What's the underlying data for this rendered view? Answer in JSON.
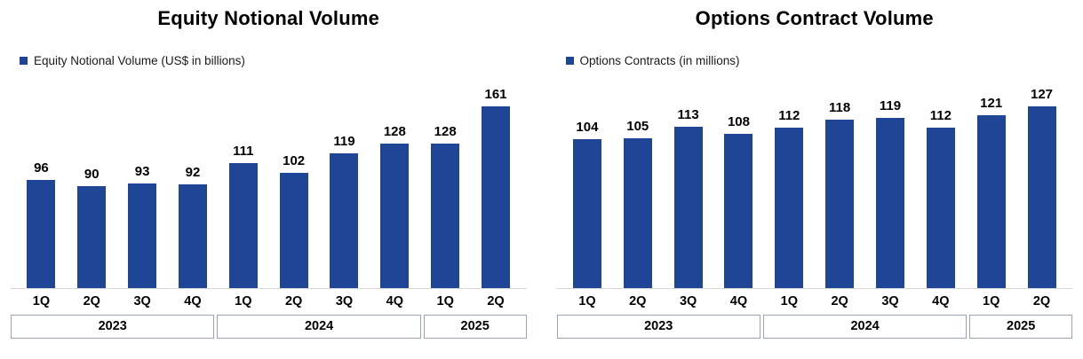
{
  "colors": {
    "bar_blue": "#1F4696",
    "axis_line": "#d6d6d6",
    "year_box_border": "#9aa3b0"
  },
  "chart_data": [
    {
      "type": "bar",
      "title": "Equity Notional Volume",
      "legend": "Equity Notional Volume (US$ in billions)",
      "bar_color": "#1F4696",
      "categories": [
        "1Q",
        "2Q",
        "3Q",
        "4Q",
        "1Q",
        "2Q",
        "3Q",
        "4Q",
        "1Q",
        "2Q"
      ],
      "values": [
        96,
        90,
        93,
        92,
        111,
        102,
        119,
        128,
        128,
        161
      ],
      "year_groups": [
        {
          "label": "2023",
          "span": 4
        },
        {
          "label": "2024",
          "span": 4
        },
        {
          "label": "2025",
          "span": 2
        }
      ],
      "xlabel": "",
      "ylabel": "",
      "ylim": [
        0,
        170
      ],
      "grid": false,
      "legend_position": "top-left",
      "data_labels": true
    },
    {
      "type": "bar",
      "title": "Options Contract Volume",
      "legend": "Options Contracts (in millions)",
      "bar_color": "#1F4696",
      "categories": [
        "1Q",
        "2Q",
        "3Q",
        "4Q",
        "1Q",
        "2Q",
        "3Q",
        "4Q",
        "1Q",
        "2Q"
      ],
      "values": [
        104,
        105,
        113,
        108,
        112,
        118,
        119,
        112,
        121,
        127
      ],
      "year_groups": [
        {
          "label": "2023",
          "span": 4
        },
        {
          "label": "2024",
          "span": 4
        },
        {
          "label": "2025",
          "span": 2
        }
      ],
      "xlabel": "",
      "ylabel": "",
      "ylim": [
        0,
        135
      ],
      "grid": false,
      "legend_position": "top-left",
      "data_labels": true
    }
  ]
}
